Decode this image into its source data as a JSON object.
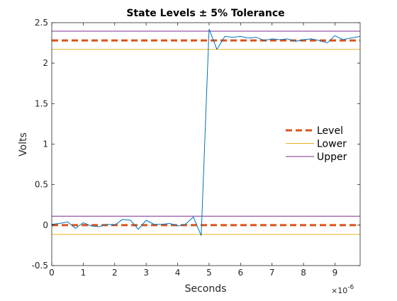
{
  "chart_data": {
    "type": "line",
    "title": "State Levels ± 5% Tolerance",
    "xlabel": "Seconds",
    "ylabel": "Volts",
    "x_exponent_label": "×10",
    "x_exponent_power": "-6",
    "xlim": [
      0,
      9.8
    ],
    "ylim": [
      -0.5,
      2.5
    ],
    "xticks": [
      0,
      1,
      2,
      3,
      4,
      5,
      6,
      7,
      8,
      9
    ],
    "xtick_labels": [
      "0",
      "1",
      "2",
      "3",
      "4",
      "5",
      "6",
      "7",
      "8",
      "9"
    ],
    "yticks": [
      -0.5,
      0,
      0.5,
      1,
      1.5,
      2,
      2.5
    ],
    "ytick_labels": [
      "-0.5",
      "0",
      "0.5",
      "1",
      "1.5",
      "2",
      "2.5"
    ],
    "grid": false,
    "legend_position": "center-right",
    "signal": {
      "color": "#0072BD",
      "x": [
        0,
        0.25,
        0.5,
        0.75,
        1,
        1.25,
        1.5,
        1.75,
        2,
        2.25,
        2.5,
        2.75,
        3,
        3.25,
        3.5,
        3.75,
        4,
        4.25,
        4.5,
        4.75,
        5,
        5.25,
        5.5,
        5.75,
        6,
        6.25,
        6.5,
        6.75,
        7,
        7.25,
        7.5,
        7.75,
        8,
        8.25,
        8.5,
        8.75,
        9,
        9.25,
        9.5,
        9.8
      ],
      "y": [
        0.01,
        0.02,
        0.04,
        -0.04,
        0.03,
        -0.01,
        -0.02,
        0.01,
        0.0,
        0.07,
        0.06,
        -0.05,
        0.06,
        0.01,
        0.01,
        0.02,
        -0.01,
        0.01,
        0.1,
        -0.13,
        2.42,
        2.17,
        2.33,
        2.32,
        2.33,
        2.31,
        2.32,
        2.28,
        2.3,
        2.29,
        2.3,
        2.27,
        2.29,
        2.3,
        2.28,
        2.25,
        2.34,
        2.29,
        2.31,
        2.33
      ]
    },
    "series": [
      {
        "name": "Level",
        "color": "#D95319",
        "style": "dashed",
        "values": [
          0.0,
          2.28
        ]
      },
      {
        "name": "Lower",
        "color": "#EDB120",
        "style": "solid",
        "values": [
          -0.115,
          2.17
        ]
      },
      {
        "name": "Upper",
        "color": "#7E2F8E",
        "style": "solid",
        "values": [
          0.11,
          2.395
        ]
      }
    ]
  }
}
